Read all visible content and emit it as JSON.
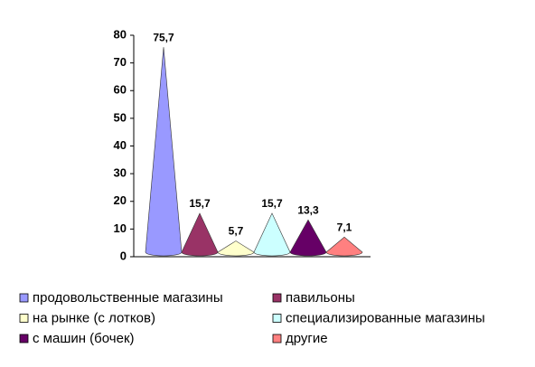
{
  "chart_data": {
    "type": "cone",
    "series": [
      {
        "name": "продовольственные магазины",
        "color": "#9999ff",
        "values": [
          75.7
        ],
        "value_labels": [
          "75,7"
        ]
      },
      {
        "name": "павильоны",
        "color": "#993366",
        "values": [
          15.7
        ],
        "value_labels": [
          "15,7"
        ]
      },
      {
        "name": "на рынке (с лотков)",
        "color": "#ffffcc",
        "values": [
          5.7
        ],
        "value_labels": [
          "5,7"
        ]
      },
      {
        "name": "специализированные магазины",
        "color": "#ccffff",
        "values": [
          15.7
        ],
        "value_labels": [
          "15,7"
        ]
      },
      {
        "name": "с машин (бочек)",
        "color": "#660066",
        "values": [
          13.3
        ],
        "value_labels": [
          "13,3"
        ]
      },
      {
        "name": "другие",
        "color": "#ff8080",
        "values": [
          7.1
        ],
        "value_labels": [
          "7,1"
        ]
      }
    ],
    "ylim": [
      0,
      80
    ],
    "yticks": [
      0,
      10,
      20,
      30,
      40,
      50,
      60,
      70,
      80
    ]
  }
}
